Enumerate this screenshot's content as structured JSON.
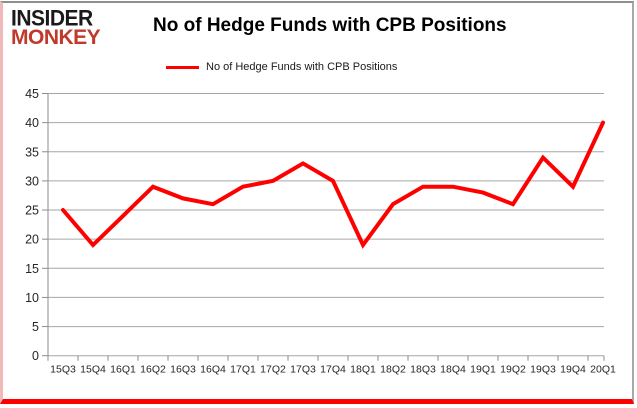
{
  "logo": {
    "line1": "INSIDER",
    "line2": "MONKEY"
  },
  "header": {
    "title": "No of Hedge Funds with CPB Positions"
  },
  "legend": {
    "label": "No of Hedge Funds with CPB Positions",
    "line_color": "#ff0000"
  },
  "chart_data": {
    "type": "line",
    "title": "No of Hedge Funds with CPB Positions",
    "categories": [
      "15Q3",
      "15Q4",
      "16Q1",
      "16Q2",
      "16Q3",
      "16Q4",
      "17Q1",
      "17Q2",
      "17Q3",
      "17Q4",
      "18Q1",
      "18Q2",
      "18Q3",
      "18Q4",
      "19Q1",
      "19Q2",
      "19Q3",
      "19Q4",
      "20Q1"
    ],
    "series": [
      {
        "name": "No of Hedge Funds with CPB Positions",
        "color": "#ff0000",
        "values": [
          25,
          19,
          24,
          29,
          27,
          26,
          29,
          30,
          33,
          30,
          19,
          26,
          29,
          29,
          28,
          26,
          34,
          29,
          40
        ]
      }
    ],
    "xlabel": "",
    "ylabel": "",
    "ylim": [
      0,
      45
    ],
    "ytick_step": 5,
    "yticks": [
      0,
      5,
      10,
      15,
      20,
      25,
      30,
      35,
      40,
      45
    ],
    "grid": true,
    "legend_position": "top",
    "gridline_color": "#a6a6a6",
    "axis_color": "#8c8c8c",
    "text_color": "#262626"
  },
  "frame": {
    "bottom_border_color": "#ff0000",
    "left_border_color": "#f2b9b9"
  }
}
